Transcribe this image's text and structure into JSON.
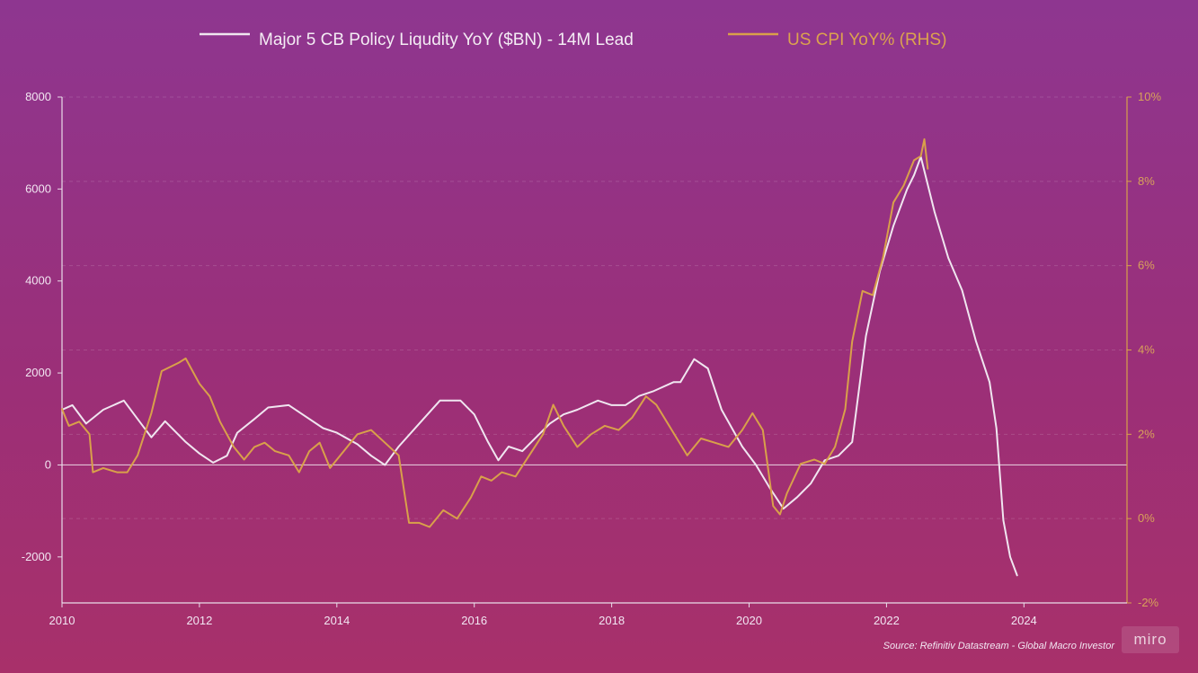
{
  "chart_data": {
    "type": "line",
    "series": [
      {
        "name": "Major 5 CB Policy Liqudity YoY ($BN) - 14M Lead",
        "axis": "left",
        "color": "#f0e6f0",
        "points": [
          [
            2010.0,
            1200
          ],
          [
            2010.15,
            1300
          ],
          [
            2010.35,
            900
          ],
          [
            2010.6,
            1200
          ],
          [
            2010.9,
            1400
          ],
          [
            2011.1,
            1000
          ],
          [
            2011.3,
            600
          ],
          [
            2011.5,
            950
          ],
          [
            2011.8,
            500
          ],
          [
            2012.0,
            250
          ],
          [
            2012.2,
            50
          ],
          [
            2012.4,
            200
          ],
          [
            2012.55,
            700
          ],
          [
            2012.8,
            1000
          ],
          [
            2013.0,
            1250
          ],
          [
            2013.3,
            1300
          ],
          [
            2013.5,
            1100
          ],
          [
            2013.8,
            800
          ],
          [
            2014.0,
            700
          ],
          [
            2014.3,
            450
          ],
          [
            2014.5,
            200
          ],
          [
            2014.7,
            0
          ],
          [
            2014.9,
            400
          ],
          [
            2015.2,
            900
          ],
          [
            2015.5,
            1400
          ],
          [
            2015.8,
            1400
          ],
          [
            2016.0,
            1100
          ],
          [
            2016.2,
            500
          ],
          [
            2016.35,
            100
          ],
          [
            2016.5,
            400
          ],
          [
            2016.7,
            300
          ],
          [
            2016.9,
            600
          ],
          [
            2017.1,
            900
          ],
          [
            2017.3,
            1100
          ],
          [
            2017.5,
            1200
          ],
          [
            2017.8,
            1400
          ],
          [
            2018.0,
            1300
          ],
          [
            2018.2,
            1300
          ],
          [
            2018.4,
            1500
          ],
          [
            2018.6,
            1600
          ],
          [
            2018.9,
            1800
          ],
          [
            2019.0,
            1800
          ],
          [
            2019.2,
            2300
          ],
          [
            2019.4,
            2100
          ],
          [
            2019.6,
            1200
          ],
          [
            2019.9,
            400
          ],
          [
            2020.1,
            0
          ],
          [
            2020.3,
            -500
          ],
          [
            2020.5,
            -950
          ],
          [
            2020.7,
            -700
          ],
          [
            2020.9,
            -400
          ],
          [
            2021.1,
            100
          ],
          [
            2021.3,
            200
          ],
          [
            2021.5,
            500
          ],
          [
            2021.7,
            2800
          ],
          [
            2021.9,
            4200
          ],
          [
            2022.1,
            5200
          ],
          [
            2022.3,
            6000
          ],
          [
            2022.4,
            6300
          ],
          [
            2022.5,
            6700
          ],
          [
            2022.7,
            5500
          ],
          [
            2022.9,
            4500
          ],
          [
            2023.1,
            3800
          ],
          [
            2023.3,
            2700
          ],
          [
            2023.5,
            1800
          ],
          [
            2023.6,
            800
          ],
          [
            2023.7,
            -1200
          ],
          [
            2023.8,
            -2000
          ],
          [
            2023.9,
            -2400
          ]
        ]
      },
      {
        "name": "US CPI YoY% (RHS)",
        "axis": "right",
        "color": "#d9a04a",
        "points": [
          [
            2010.0,
            2.6
          ],
          [
            2010.1,
            2.2
          ],
          [
            2010.25,
            2.3
          ],
          [
            2010.4,
            2.0
          ],
          [
            2010.45,
            1.1
          ],
          [
            2010.6,
            1.2
          ],
          [
            2010.8,
            1.1
          ],
          [
            2010.95,
            1.1
          ],
          [
            2011.1,
            1.5
          ],
          [
            2011.3,
            2.5
          ],
          [
            2011.45,
            3.5
          ],
          [
            2011.7,
            3.7
          ],
          [
            2011.8,
            3.8
          ],
          [
            2012.0,
            3.2
          ],
          [
            2012.15,
            2.9
          ],
          [
            2012.3,
            2.3
          ],
          [
            2012.5,
            1.7
          ],
          [
            2012.65,
            1.4
          ],
          [
            2012.8,
            1.7
          ],
          [
            2012.95,
            1.8
          ],
          [
            2013.1,
            1.6
          ],
          [
            2013.3,
            1.5
          ],
          [
            2013.45,
            1.1
          ],
          [
            2013.6,
            1.6
          ],
          [
            2013.75,
            1.8
          ],
          [
            2013.9,
            1.2
          ],
          [
            2014.1,
            1.6
          ],
          [
            2014.3,
            2.0
          ],
          [
            2014.5,
            2.1
          ],
          [
            2014.7,
            1.8
          ],
          [
            2014.9,
            1.5
          ],
          [
            2015.05,
            -0.1
          ],
          [
            2015.2,
            -0.1
          ],
          [
            2015.35,
            -0.2
          ],
          [
            2015.55,
            0.2
          ],
          [
            2015.75,
            0.0
          ],
          [
            2015.95,
            0.5
          ],
          [
            2016.1,
            1.0
          ],
          [
            2016.25,
            0.9
          ],
          [
            2016.4,
            1.1
          ],
          [
            2016.6,
            1.0
          ],
          [
            2016.8,
            1.5
          ],
          [
            2017.0,
            2.0
          ],
          [
            2017.15,
            2.7
          ],
          [
            2017.3,
            2.2
          ],
          [
            2017.5,
            1.7
          ],
          [
            2017.7,
            2.0
          ],
          [
            2017.9,
            2.2
          ],
          [
            2018.1,
            2.1
          ],
          [
            2018.3,
            2.4
          ],
          [
            2018.5,
            2.9
          ],
          [
            2018.65,
            2.7
          ],
          [
            2018.8,
            2.3
          ],
          [
            2018.95,
            1.9
          ],
          [
            2019.1,
            1.5
          ],
          [
            2019.3,
            1.9
          ],
          [
            2019.5,
            1.8
          ],
          [
            2019.7,
            1.7
          ],
          [
            2019.9,
            2.1
          ],
          [
            2020.05,
            2.5
          ],
          [
            2020.2,
            2.1
          ],
          [
            2020.35,
            0.3
          ],
          [
            2020.45,
            0.1
          ],
          [
            2020.55,
            0.6
          ],
          [
            2020.75,
            1.3
          ],
          [
            2020.95,
            1.4
          ],
          [
            2021.1,
            1.3
          ],
          [
            2021.25,
            1.7
          ],
          [
            2021.4,
            2.6
          ],
          [
            2021.5,
            4.2
          ],
          [
            2021.65,
            5.4
          ],
          [
            2021.8,
            5.3
          ],
          [
            2021.95,
            6.2
          ],
          [
            2022.1,
            7.5
          ],
          [
            2022.25,
            7.9
          ],
          [
            2022.4,
            8.5
          ],
          [
            2022.5,
            8.6
          ],
          [
            2022.55,
            9.0
          ],
          [
            2022.6,
            8.3
          ]
        ]
      }
    ],
    "x_ticks": [
      "2010",
      "2012",
      "2014",
      "2016",
      "2018",
      "2020",
      "2022",
      "2024"
    ],
    "xlim": [
      2010,
      2025.5
    ],
    "y_left_ticks": [
      "8000",
      "6000",
      "4000",
      "2000",
      "0",
      "-2000"
    ],
    "y_left_values": [
      8000,
      6000,
      4000,
      2000,
      0,
      -2000
    ],
    "ylim_left": [
      -3000,
      8000
    ],
    "y_right_ticks": [
      "10%",
      "8%",
      "6%",
      "4%",
      "2%",
      "0%",
      "-2%"
    ],
    "y_right_values": [
      10,
      8,
      6,
      4,
      2,
      0,
      -2
    ],
    "ylim_right": [
      -2,
      10
    ],
    "legend_position": "top-center",
    "grid": "horizontal dashed",
    "source": "Source: Refinitiv Datastream - Global Macro Investor"
  },
  "watermark": "miro"
}
